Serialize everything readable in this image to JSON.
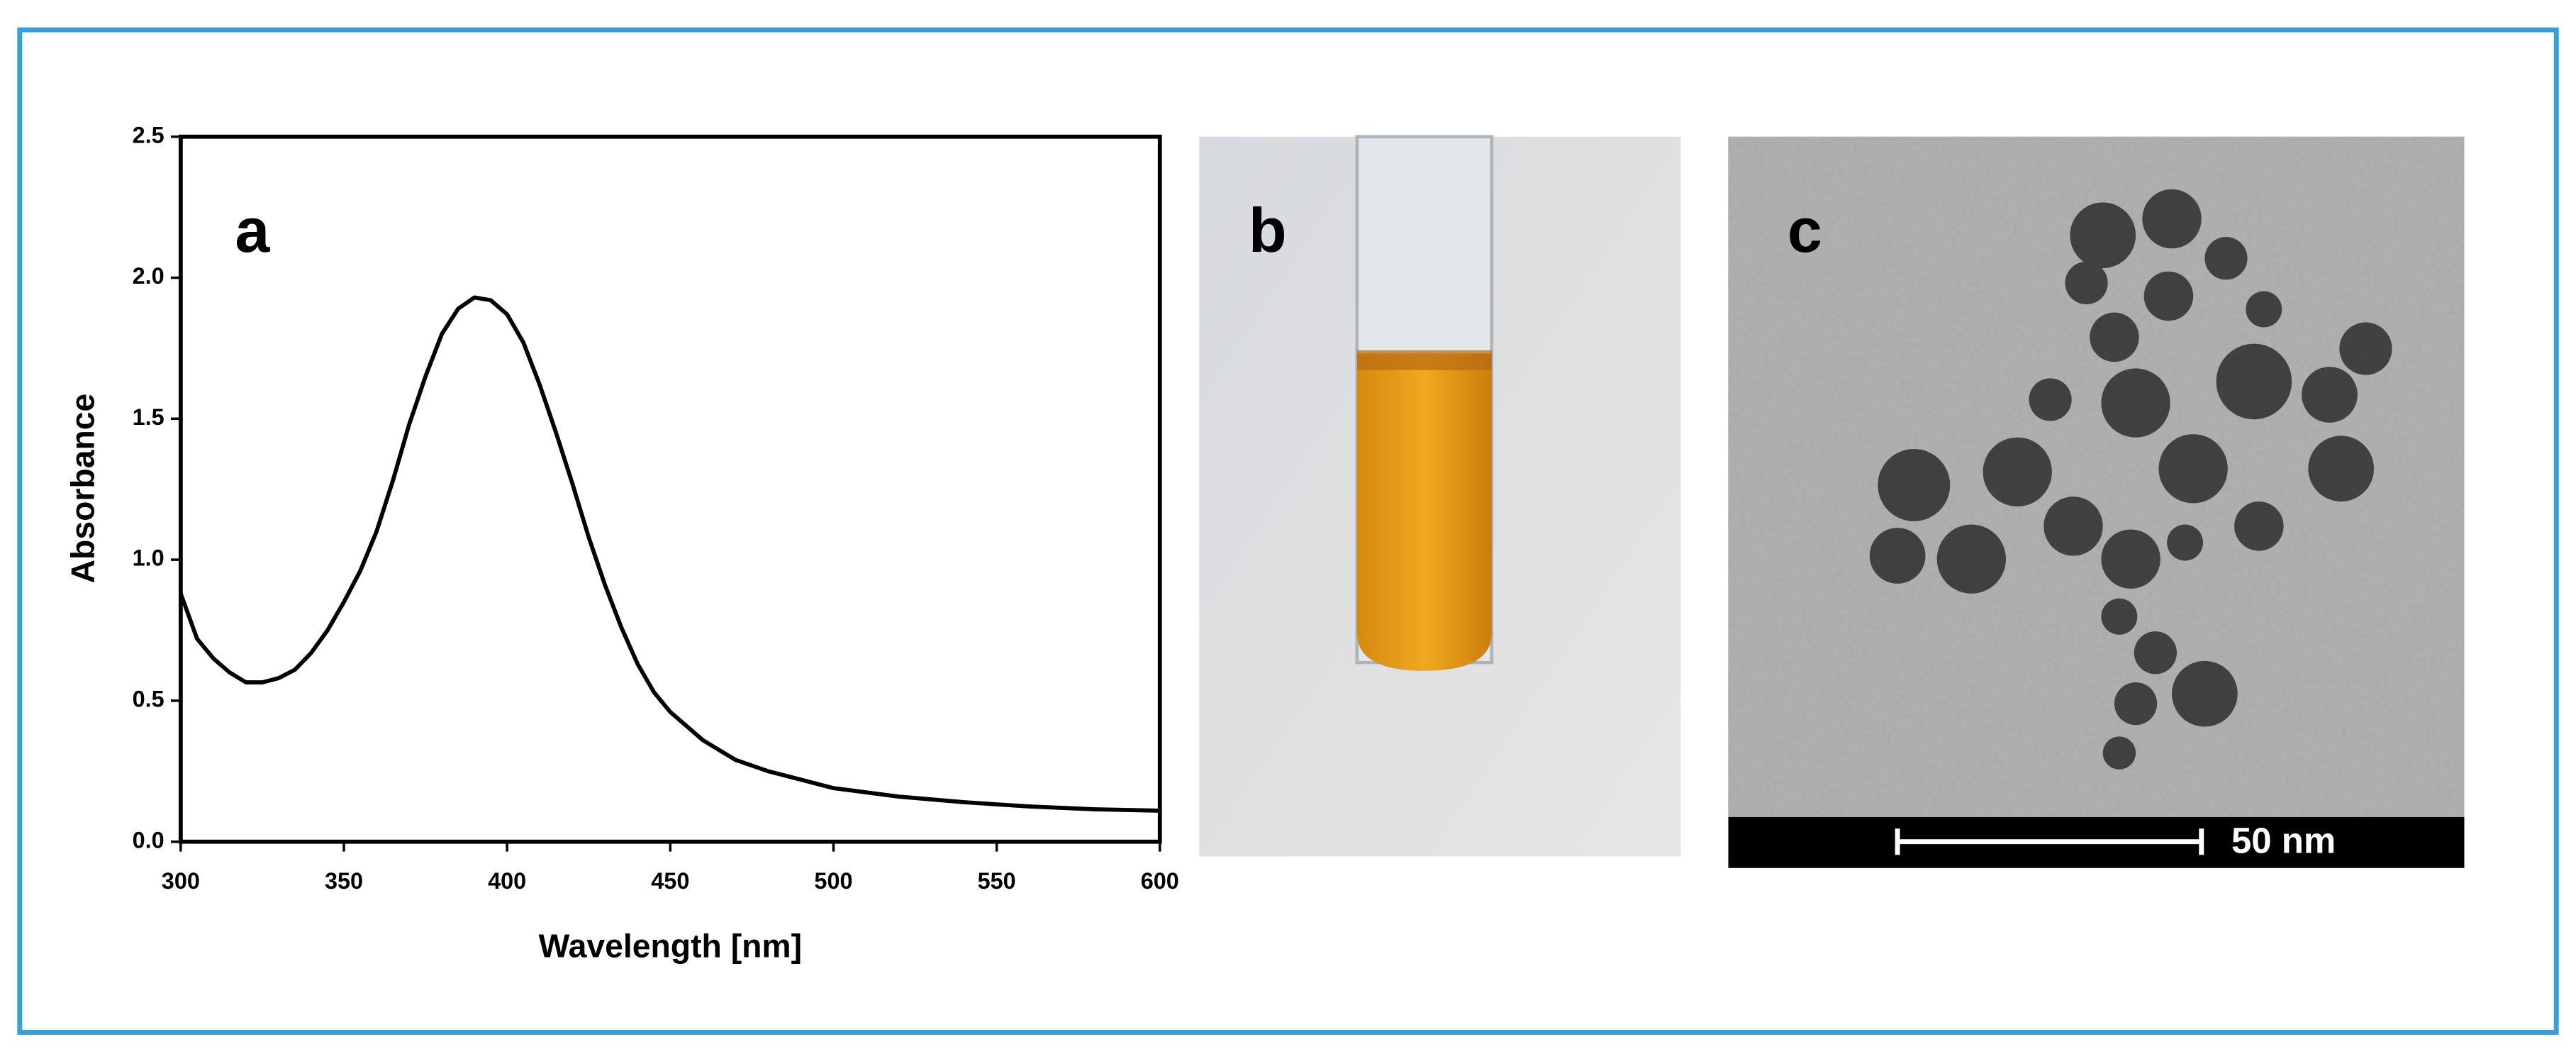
{
  "chart_data": {
    "type": "line",
    "x_label": "Wavelength [nm]",
    "y_label": "Absorbance",
    "annotation": "a",
    "color": "#000000",
    "x": [
      300,
      305,
      310,
      315,
      320,
      325,
      330,
      335,
      340,
      345,
      350,
      355,
      360,
      365,
      370,
      375,
      380,
      385,
      390,
      395,
      400,
      405,
      410,
      415,
      420,
      425,
      430,
      435,
      440,
      445,
      450,
      460,
      470,
      480,
      490,
      500,
      520,
      540,
      560,
      580,
      600
    ],
    "values": [
      0.88,
      0.72,
      0.65,
      0.6,
      0.565,
      0.565,
      0.58,
      0.61,
      0.67,
      0.75,
      0.85,
      0.96,
      1.1,
      1.28,
      1.48,
      1.65,
      1.8,
      1.89,
      1.93,
      1.92,
      1.87,
      1.77,
      1.62,
      1.45,
      1.27,
      1.08,
      0.91,
      0.76,
      0.63,
      0.53,
      0.46,
      0.36,
      0.29,
      0.25,
      0.22,
      0.19,
      0.16,
      0.14,
      0.125,
      0.115,
      0.11
    ],
    "xlim": [
      300,
      600
    ],
    "xticks": [
      300,
      350,
      400,
      450,
      500,
      550,
      600
    ],
    "ylim": [
      0,
      2.5
    ],
    "yticks": [
      {
        "value": 0,
        "label": "0.0"
      },
      0.5,
      {
        "value": 1,
        "label": "1.0"
      },
      1.5,
      {
        "value": 2,
        "label": "2.0"
      },
      2.5
    ]
  },
  "panel_labels": [
    "b",
    "c"
  ],
  "scale_bar_label": "50 nm"
}
